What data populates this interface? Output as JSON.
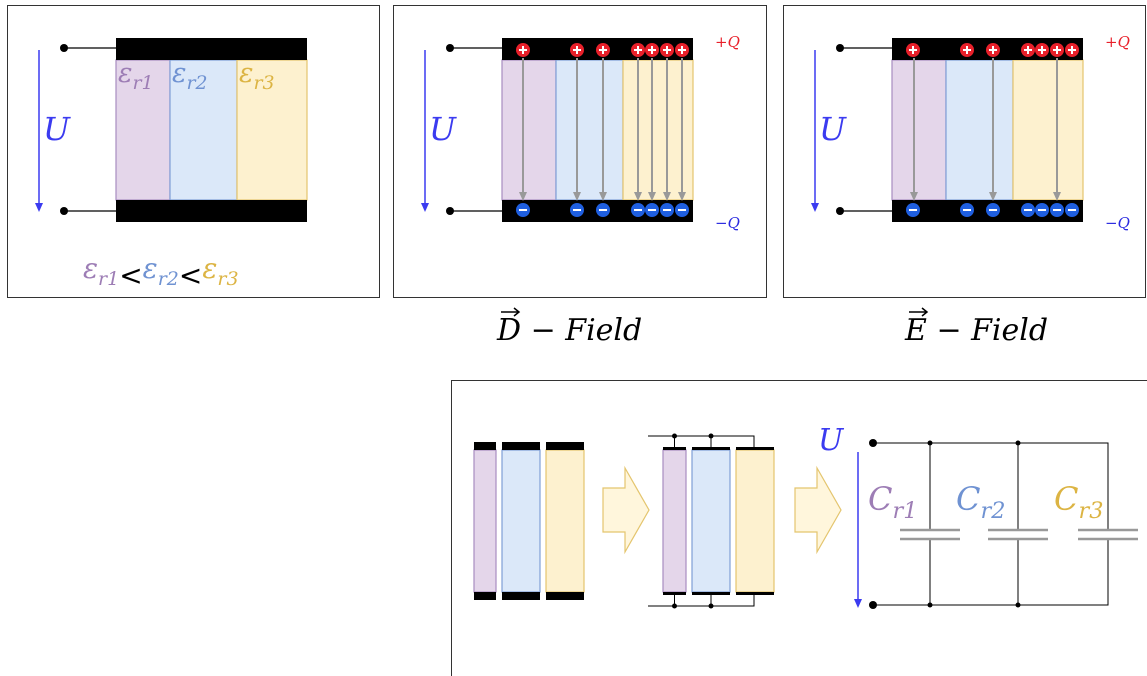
{
  "panels": [
    {
      "voltage": "U",
      "dielectrics": [
        {
          "symbol": "ε",
          "sub": "r1"
        },
        {
          "symbol": "ε",
          "sub": "r2"
        },
        {
          "symbol": "ε",
          "sub": "r3"
        }
      ],
      "relation": "<"
    },
    {
      "voltage": "U",
      "top_charge": "+Q",
      "bottom_charge": "−Q",
      "caption": {
        "vector": "D",
        "rest": " − Field"
      }
    },
    {
      "voltage": "U",
      "top_charge": "+Q",
      "bottom_charge": "−Q",
      "caption": {
        "vector": "E",
        "rest": " − Field"
      }
    }
  ],
  "circuit": {
    "voltage": "U",
    "capacitors": [
      {
        "symbol": "C",
        "sub": "r1"
      },
      {
        "symbol": "C",
        "sub": "r2"
      },
      {
        "symbol": "C",
        "sub": "r3"
      }
    ]
  }
}
